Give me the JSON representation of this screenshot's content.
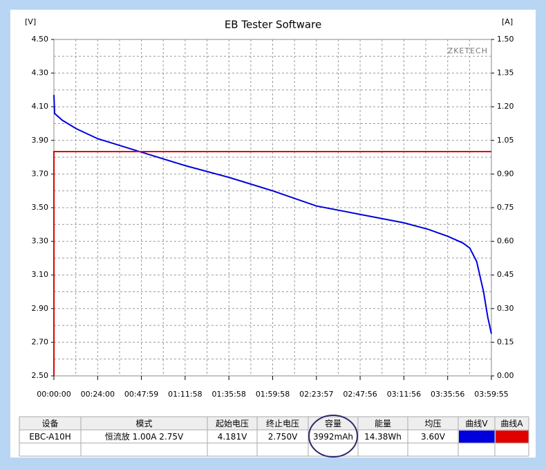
{
  "chart_data": {
    "type": "line",
    "title": "EB Tester Software",
    "y_label": "[V]",
    "y2_label": "[A]",
    "watermark": "ZKETECH",
    "xlim": [
      0,
      14395
    ],
    "xticks": [
      {
        "value": 0,
        "label": "00:00:00"
      },
      {
        "value": 1440,
        "label": "00:24:00"
      },
      {
        "value": 2879,
        "label": "00:47:59"
      },
      {
        "value": 4318,
        "label": "01:11:58"
      },
      {
        "value": 5758,
        "label": "01:35:58"
      },
      {
        "value": 7198,
        "label": "01:59:58"
      },
      {
        "value": 8637,
        "label": "02:23:57"
      },
      {
        "value": 10076,
        "label": "02:47:56"
      },
      {
        "value": 11516,
        "label": "03:11:56"
      },
      {
        "value": 12956,
        "label": "03:35:56"
      },
      {
        "value": 14395,
        "label": "03:59:55"
      }
    ],
    "ylim": [
      2.5,
      4.5
    ],
    "yticks": [
      {
        "value": 2.5,
        "label": "2.50"
      },
      {
        "value": 2.7,
        "label": "2.70"
      },
      {
        "value": 2.9,
        "label": "2.90"
      },
      {
        "value": 3.1,
        "label": "3.10"
      },
      {
        "value": 3.3,
        "label": "3.30"
      },
      {
        "value": 3.5,
        "label": "3.50"
      },
      {
        "value": 3.7,
        "label": "3.70"
      },
      {
        "value": 3.9,
        "label": "3.90"
      },
      {
        "value": 4.1,
        "label": "4.10"
      },
      {
        "value": 4.3,
        "label": "4.30"
      },
      {
        "value": 4.5,
        "label": "4.50"
      }
    ],
    "y2lim": [
      0,
      1.5
    ],
    "y2ticks": [
      {
        "value": 0,
        "label": "0.00"
      },
      0.15,
      {
        "value": 0.3,
        "label": "0.30"
      },
      0.45,
      {
        "value": 0.6,
        "label": "0.60"
      },
      0.75,
      {
        "value": 0.9,
        "label": "0.90"
      },
      1.05,
      {
        "value": 1.2,
        "label": "1.20"
      },
      1.35,
      {
        "value": 1.5,
        "label": "1.50"
      }
    ],
    "grid": true,
    "series": [
      {
        "color": "#0000dd",
        "x": [
          0,
          23,
          273,
          728,
          1440,
          2879,
          4318,
          5758,
          7198,
          8637,
          10076,
          11516,
          12335,
          12956,
          13456,
          13683,
          13910,
          14137,
          14274,
          14395
        ],
        "values": [
          4.17,
          4.06,
          4.02,
          3.97,
          3.91,
          3.83,
          3.75,
          3.68,
          3.6,
          3.51,
          3.46,
          3.41,
          3.37,
          3.33,
          3.29,
          3.26,
          3.18,
          3.0,
          2.85,
          2.75
        ]
      },
      {
        "color": "#e00000",
        "axis": "y2",
        "x": [
          0,
          0,
          14395
        ],
        "values": [
          0,
          1.0,
          1.0
        ]
      }
    ]
  },
  "table": {
    "header": [
      "设备",
      "模式",
      "起始电压",
      "终止电压",
      "容量",
      "能量",
      "均压",
      "曲线V",
      "曲线A"
    ],
    "rows": [
      [
        "EBC-A10H",
        "恒流放  1.00A  2.75V",
        "4.181V",
        "2.750V",
        "3992mAh",
        "14.38Wh",
        "3.60V"
      ]
    ]
  }
}
